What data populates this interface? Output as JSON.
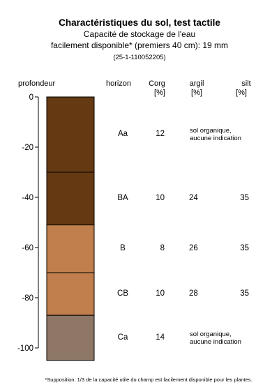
{
  "title": "Charactéristiques du sol, test tactile",
  "subtitle_line1": "Capacité de stockage de l'eau",
  "subtitle_line2": "facilement disponible* (premiers 40 cm): 19 mm",
  "sample_code": "(25-1-110052205)",
  "footnote": "*Supposition: 1/3 de la capacité utile du champ est facilement disponible pour les plantes.",
  "columns": {
    "depth": "profondeur",
    "horizon": "horizon",
    "corg": "Corg",
    "corg_unit": "[%]",
    "argil": "argil",
    "argil_unit": "[%]",
    "silt": "silt",
    "silt_unit": "[%]"
  },
  "chart_data": {
    "type": "table",
    "ylabel": "profondeur",
    "ylim": [
      -105,
      0
    ],
    "y_ticks": [
      0,
      -20,
      -40,
      -60,
      -80,
      -100
    ],
    "y_tick_labels": [
      "0",
      "-20",
      "-40",
      "-60",
      "-80",
      "-100"
    ],
    "layers": [
      {
        "horizon": "Aa",
        "top": 0,
        "bottom": -30,
        "corg": "12",
        "argil": "",
        "silt": "",
        "note_line1": "sol organique,",
        "note_line2": "aucune indication",
        "color": "#653912"
      },
      {
        "horizon": "BA",
        "top": -30,
        "bottom": -51,
        "corg": "10",
        "argil": "24",
        "silt": "35",
        "note_line1": "",
        "note_line2": "",
        "color": "#653912"
      },
      {
        "horizon": "B",
        "top": -51,
        "bottom": -70,
        "corg": "8",
        "argil": "26",
        "silt": "35",
        "note_line1": "",
        "note_line2": "",
        "color": "#c07f4c"
      },
      {
        "horizon": "CB",
        "top": -70,
        "bottom": -87,
        "corg": "10",
        "argil": "28",
        "silt": "35",
        "note_line1": "",
        "note_line2": "",
        "color": "#c07f4c"
      },
      {
        "horizon": "Ca",
        "top": -87,
        "bottom": -105,
        "corg": "14",
        "argil": "",
        "silt": "",
        "note_line1": "sol organique,",
        "note_line2": "aucune indication",
        "color": "#8e7766"
      }
    ]
  }
}
